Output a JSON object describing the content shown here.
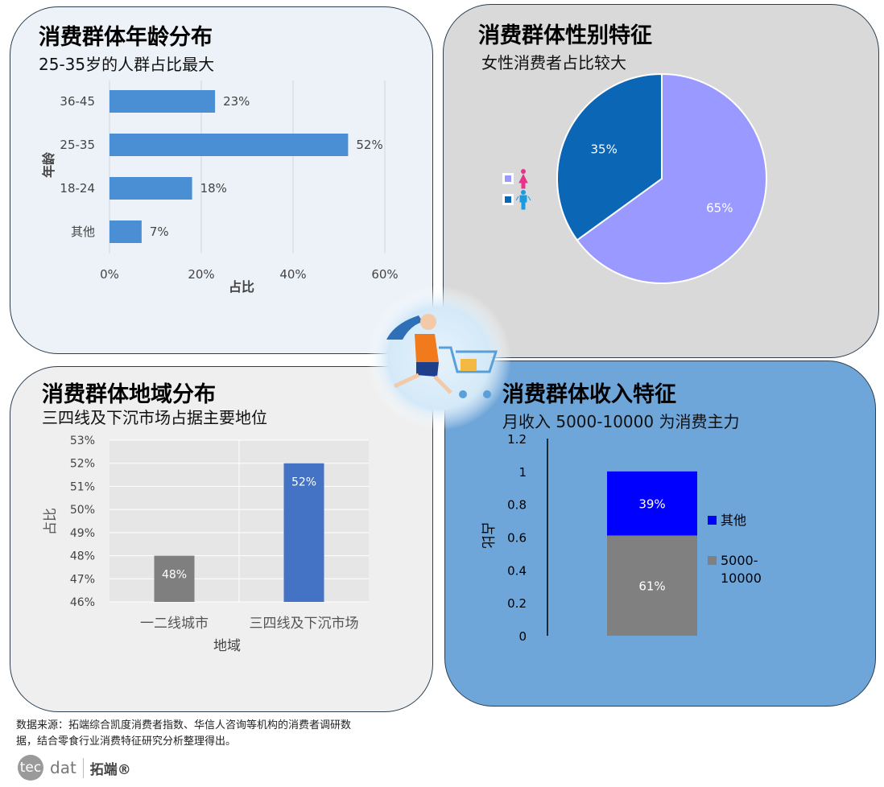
{
  "panels": {
    "age": {
      "title": "消费群体年龄分布",
      "subtitle": "25-35岁的人群占比最大"
    },
    "gender": {
      "title": "消费群体性别特征",
      "subtitle": "女性消费者占比较大"
    },
    "region": {
      "title": "消费群体地域分布",
      "subtitle": "三四线及下沉市场占据主要地位"
    },
    "income": {
      "title": "消费群体收入特征",
      "subtitle": "月收入 5000-10000 为消费主力"
    }
  },
  "chart_data": [
    {
      "type": "bar",
      "orientation": "horizontal",
      "categories": [
        "36-45",
        "25-35",
        "18-24",
        "其他"
      ],
      "values": [
        23,
        52,
        18,
        7
      ],
      "data_labels": [
        "23%",
        "52%",
        "18%",
        "7%"
      ],
      "xlabel": "占比",
      "ylabel": "年龄",
      "xlim": [
        0,
        60
      ],
      "xticks": [
        "0%",
        "20%",
        "40%",
        "60%"
      ],
      "grid": true,
      "color": "#4a8fd4"
    },
    {
      "type": "pie",
      "slices": [
        {
          "value": 65,
          "label": "65%",
          "color": "#9999ff",
          "icon": "female-icon"
        },
        {
          "value": 35,
          "label": "35%",
          "color": "#0b66b5",
          "icon": "male-icon"
        }
      ],
      "legend": "left"
    },
    {
      "type": "bar",
      "categories": [
        "一二线城市",
        "三四线及下沉市场"
      ],
      "values": [
        48,
        52
      ],
      "data_labels": [
        "48%",
        "52%"
      ],
      "colors": [
        "#7f7f7f",
        "#4472c4"
      ],
      "xlabel": "地域",
      "ylabel": "占比",
      "ylim": [
        46,
        53
      ],
      "yticks": [
        "46%",
        "47%",
        "48%",
        "49%",
        "50%",
        "51%",
        "52%",
        "53%"
      ],
      "grid": true
    },
    {
      "type": "bar",
      "stacked": true,
      "series": [
        {
          "name": "5000-10000",
          "value": 0.61,
          "label": "61%",
          "color": "#808080"
        },
        {
          "name": "其他",
          "value": 0.39,
          "label": "39%",
          "color": "#0000ff"
        }
      ],
      "ylabel": "占比",
      "ylim": [
        0,
        1.2
      ],
      "yticks": [
        "0",
        "0.2",
        "0.4",
        "0.6",
        "0.8",
        "1",
        "1.2"
      ],
      "legend": "right"
    }
  ],
  "footer": {
    "source": "数据来源：拓端综合凯度消费者指数、华信人咨询等机构的消费者调研数据，结合零食行业消费特征研究分析整理得出。",
    "logo_mark": "tec",
    "logo_text": "dat",
    "brand": "拓端®"
  }
}
